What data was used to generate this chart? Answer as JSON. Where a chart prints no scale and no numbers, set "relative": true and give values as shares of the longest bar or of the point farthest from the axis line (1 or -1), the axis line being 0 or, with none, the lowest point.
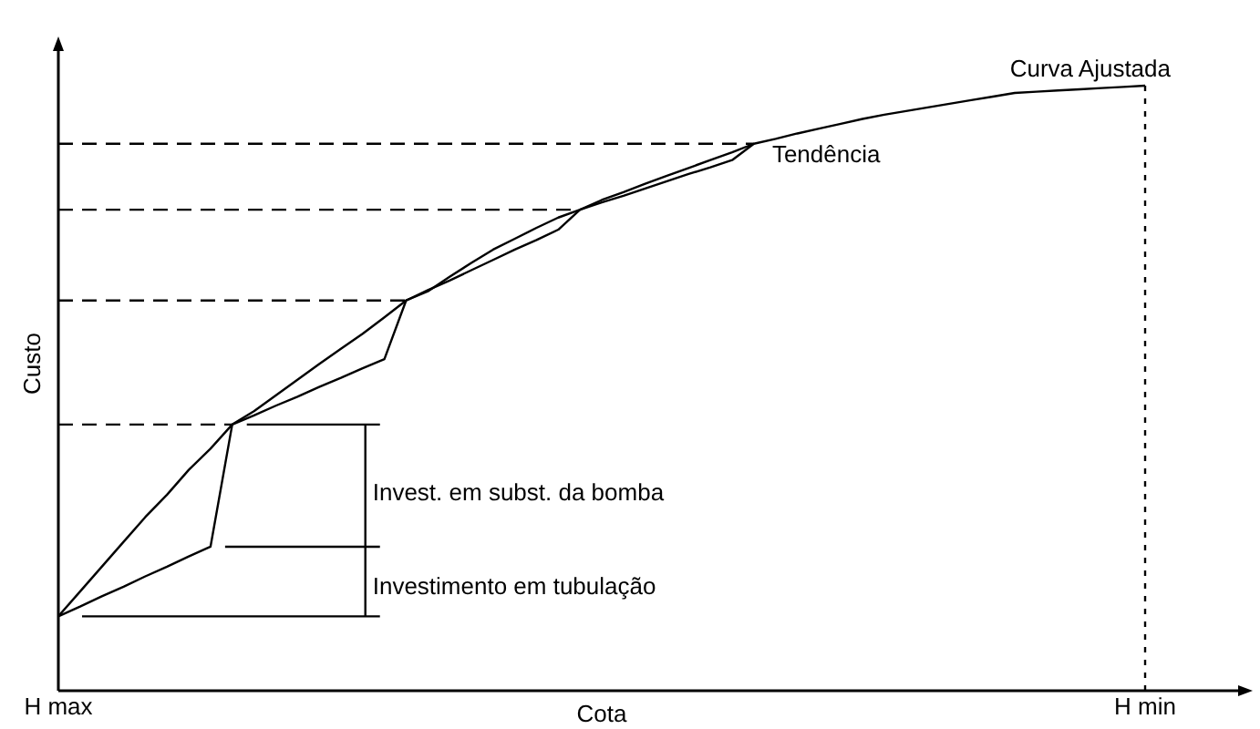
{
  "chart_data": {
    "type": "line",
    "relative": true,
    "xlabel": "Cota",
    "ylabel": "Custo",
    "categories": [
      "H max",
      null,
      null,
      null,
      null,
      null,
      null,
      null,
      null,
      null,
      null,
      null,
      null,
      null,
      null,
      null,
      null,
      null,
      null,
      null,
      null,
      null,
      null,
      null,
      null,
      null,
      null,
      null,
      null,
      null,
      null,
      null,
      null,
      null,
      null,
      null,
      null,
      null,
      null,
      null,
      null,
      null,
      null,
      null,
      null,
      null,
      null,
      null,
      null,
      null,
      "H min"
    ],
    "legend": false,
    "marker": "none",
    "line_style": "solid",
    "series": [
      {
        "name": "Curva Ajustada",
        "color": "#000000",
        "values": [
          0.123,
          0.164,
          0.205,
          0.246,
          0.287,
          0.324,
          0.365,
          0.4,
          0.44,
          0.462,
          0.488,
          0.514,
          0.54,
          0.565,
          0.59,
          0.617,
          0.645,
          0.66,
          0.684,
          0.707,
          0.729,
          0.747,
          0.765,
          0.782,
          0.795,
          0.811,
          0.824,
          0.838,
          0.851,
          0.864,
          0.877,
          0.89,
          0.904,
          0.912,
          0.921,
          0.929,
          0.937,
          0.945,
          0.952,
          0.958,
          0.964,
          0.97,
          0.976,
          0.982,
          0.988,
          0.99,
          0.992,
          0.994,
          0.996,
          0.998,
          1.0
        ]
      },
      {
        "name": "Tendência",
        "color": "#000000",
        "values": [
          0.123,
          0.139,
          0.156,
          0.172,
          0.189,
          0.205,
          0.222,
          0.238,
          0.44,
          0.455,
          0.471,
          0.486,
          0.502,
          0.517,
          0.533,
          0.548,
          0.645,
          0.662,
          0.678,
          0.695,
          0.712,
          0.729,
          0.745,
          0.762,
          0.795,
          0.807,
          0.818,
          0.83,
          0.842,
          0.854,
          0.865,
          0.877,
          0.904,
          null,
          null,
          null,
          null,
          null,
          null,
          null,
          null,
          null,
          null,
          null,
          null,
          null,
          null,
          null,
          null,
          null,
          null
        ]
      }
    ],
    "ref_lines": [
      {
        "axis": "y",
        "value": 0.44,
        "color": "#000000",
        "line_style": "dashed"
      },
      {
        "axis": "y",
        "value": 0.645,
        "color": "#000000",
        "line_style": "dashed"
      },
      {
        "axis": "y",
        "value": 0.795,
        "color": "#000000",
        "line_style": "dashed"
      },
      {
        "axis": "y",
        "value": 0.904,
        "color": "#000000",
        "line_style": "dashed"
      },
      {
        "axis": "x",
        "value": "H min",
        "color": "#000000",
        "line_style": "dotted"
      }
    ],
    "annotations": [
      "Invest. em subst. da bomba",
      "Investimento em tubulação"
    ]
  }
}
